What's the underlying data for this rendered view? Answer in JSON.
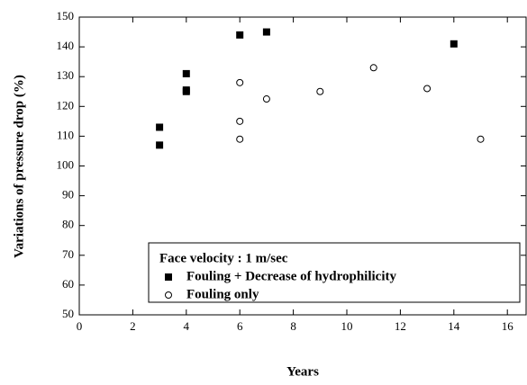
{
  "chart_data": {
    "type": "scatter",
    "xlabel": "Years",
    "ylabel": "Variations of pressure drop (%)",
    "legend_title": "Face velocity : 1 m/sec",
    "legend": "lower center",
    "xlim": [
      0,
      16.7
    ],
    "xticks": [
      0,
      2,
      4,
      6,
      8,
      10,
      12,
      14,
      16
    ],
    "ylim": [
      50,
      150
    ],
    "yticks": [
      50,
      60,
      70,
      80,
      90,
      100,
      110,
      120,
      130,
      140,
      150
    ],
    "series": [
      {
        "name": "Fouling + Decrease of hydrophilicity",
        "marker": "filled-square",
        "color": "#000000",
        "x": [
          3,
          3,
          4,
          4,
          4,
          6,
          7,
          14
        ],
        "values": [
          113,
          107,
          131,
          125.5,
          125,
          144,
          145,
          141
        ]
      },
      {
        "name": "Fouling only",
        "marker": "open-circle",
        "color": "#000000",
        "x": [
          6,
          6,
          6,
          7,
          9,
          11,
          13,
          15
        ],
        "values": [
          128,
          115,
          109,
          122.5,
          125,
          133,
          126,
          109
        ]
      }
    ]
  }
}
